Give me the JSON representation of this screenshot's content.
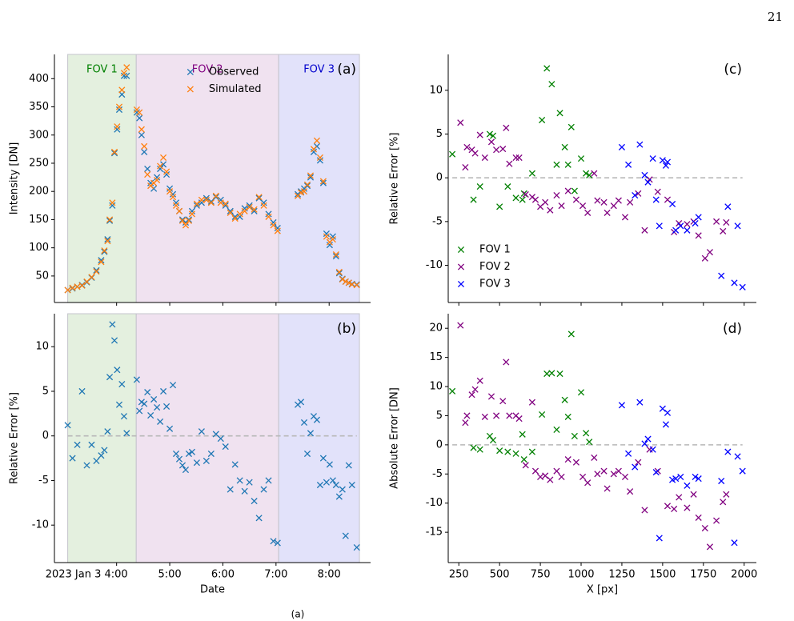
{
  "page_number": "21",
  "caption": "(a)",
  "chart_data": [
    {
      "type": "scatter",
      "panel_label": "(a)",
      "ylabel": "Intensity [DN]",
      "xlim": [
        2.83,
        8.78
      ],
      "xticks": [
        4,
        5,
        6,
        7,
        8
      ],
      "ylim": [
        3,
        443
      ],
      "yticks": [
        50,
        100,
        150,
        200,
        250,
        300,
        350,
        400
      ],
      "legend": "upper center",
      "regions": [
        {
          "label": "FOV 1",
          "color": "#008000",
          "fill": "#e4f0df",
          "start": 3.08,
          "end": 4.37
        },
        {
          "label": "FOV 2",
          "color": "#800080",
          "fill": "#f0e2f0",
          "start": 4.37,
          "end": 7.05
        },
        {
          "label": "FOV 3",
          "color": "#0000cc",
          "fill": "#e2e2fa",
          "start": 7.05,
          "end": 8.57
        }
      ],
      "x": [
        3.08,
        3.17,
        3.26,
        3.35,
        3.44,
        3.53,
        3.62,
        3.71,
        3.77,
        3.83,
        3.87,
        3.92,
        3.96,
        4.01,
        4.05,
        4.1,
        4.14,
        4.19,
        4.38,
        4.43,
        4.47,
        4.52,
        4.58,
        4.64,
        4.7,
        4.76,
        4.82,
        4.88,
        4.94,
        5.0,
        5.06,
        5.12,
        5.18,
        5.24,
        5.3,
        5.36,
        5.42,
        5.51,
        5.6,
        5.69,
        5.78,
        5.87,
        5.96,
        6.05,
        6.14,
        6.23,
        6.32,
        6.41,
        6.5,
        6.59,
        6.68,
        6.77,
        6.86,
        6.95,
        7.03,
        7.41,
        7.47,
        7.53,
        7.59,
        7.65,
        7.71,
        7.77,
        7.83,
        7.89,
        7.95,
        8.01,
        8.07,
        8.13,
        8.19,
        8.25,
        8.31,
        8.37,
        8.43,
        8.52
      ],
      "series": [
        {
          "name": "Observed",
          "color": "#1f77b4",
          "values": [
            25,
            28,
            31,
            34,
            39,
            47,
            60,
            78,
            93,
            115,
            148,
            175,
            268,
            310,
            345,
            372,
            405,
            405,
            340,
            330,
            300,
            270,
            240,
            215,
            205,
            225,
            240,
            248,
            230,
            205,
            195,
            180,
            165,
            150,
            145,
            150,
            165,
            175,
            180,
            188,
            182,
            190,
            185,
            175,
            165,
            155,
            155,
            170,
            175,
            165,
            188,
            180,
            160,
            145,
            135,
            195,
            200,
            205,
            210,
            225,
            270,
            280,
            255,
            215,
            125,
            105,
            120,
            85,
            55,
            45,
            40,
            38,
            36,
            35
          ]
        },
        {
          "name": "Simulated",
          "color": "#ff7f0e",
          "values": [
            25,
            29,
            31,
            33,
            40,
            48,
            58,
            75,
            95,
            112,
            150,
            180,
            270,
            315,
            350,
            380,
            410,
            420,
            345,
            340,
            310,
            280,
            230,
            210,
            215,
            220,
            245,
            260,
            235,
            200,
            190,
            175,
            165,
            148,
            140,
            148,
            160,
            178,
            185,
            185,
            180,
            192,
            180,
            178,
            162,
            152,
            160,
            165,
            172,
            168,
            190,
            175,
            155,
            140,
            130,
            192,
            198,
            200,
            212,
            228,
            275,
            290,
            260,
            218,
            120,
            110,
            115,
            88,
            57,
            44,
            40,
            38,
            35,
            34
          ]
        }
      ]
    },
    {
      "type": "scatter",
      "panel_label": "(b)",
      "ylabel": "Relative Error [%]",
      "xlabel": "Date",
      "xlim": [
        2.83,
        8.78
      ],
      "xticks": [
        {
          "value": 4,
          "label": "2023 Jan 3 4:00"
        },
        {
          "value": 5,
          "label": "5:00"
        },
        {
          "value": 6,
          "label": "6:00"
        },
        {
          "value": 7,
          "label": "7:00"
        },
        {
          "value": 8,
          "label": "8:00"
        }
      ],
      "ylim": [
        -14.2,
        13.7
      ],
      "yticks": [
        -10,
        -5,
        0,
        5,
        10
      ],
      "hline": 0,
      "regions": [
        {
          "color": "#008000",
          "fill": "#e4f0df",
          "start": 3.08,
          "end": 4.37
        },
        {
          "color": "#800080",
          "fill": "#f0e2f0",
          "start": 4.37,
          "end": 7.05
        },
        {
          "color": "#0000cc",
          "fill": "#e2e2fa",
          "start": 7.05,
          "end": 8.57
        }
      ],
      "x": [
        3.08,
        3.17,
        3.26,
        3.35,
        3.44,
        3.53,
        3.62,
        3.71,
        3.77,
        3.83,
        3.87,
        3.92,
        3.96,
        4.01,
        4.05,
        4.1,
        4.14,
        4.19,
        4.38,
        4.43,
        4.47,
        4.52,
        4.58,
        4.64,
        4.7,
        4.76,
        4.82,
        4.88,
        4.94,
        5.0,
        5.06,
        5.12,
        5.18,
        5.24,
        5.3,
        5.36,
        5.42,
        5.51,
        5.6,
        5.69,
        5.78,
        5.87,
        5.96,
        6.05,
        6.14,
        6.23,
        6.32,
        6.41,
        6.5,
        6.59,
        6.68,
        6.77,
        6.86,
        6.95,
        7.03,
        7.41,
        7.47,
        7.53,
        7.59,
        7.65,
        7.71,
        7.77,
        7.83,
        7.89,
        7.95,
        8.01,
        8.07,
        8.13,
        8.19,
        8.25,
        8.31,
        8.37,
        8.43,
        8.52
      ],
      "series": [
        {
          "color": "#1f77b4",
          "values": [
            1.2,
            -2.5,
            -1.0,
            5.0,
            -3.3,
            -1.0,
            -2.8,
            -2.2,
            -1.6,
            0.5,
            6.6,
            12.5,
            10.7,
            7.4,
            3.5,
            5.8,
            2.2,
            0.3,
            6.3,
            2.8,
            3.8,
            3.6,
            4.9,
            2.3,
            4.1,
            3.2,
            1.6,
            5.0,
            3.3,
            0.8,
            5.7,
            -2.0,
            -2.6,
            -3.3,
            -3.8,
            -2.0,
            -1.8,
            -3.0,
            0.5,
            -2.8,
            -2.0,
            0.2,
            -0.3,
            -1.2,
            -6.0,
            -3.2,
            -5.0,
            -6.2,
            -5.2,
            -7.3,
            -9.2,
            -6.0,
            -5.0,
            -11.8,
            -12.0,
            3.5,
            3.8,
            1.5,
            -2.0,
            0.3,
            2.2,
            1.8,
            -5.5,
            -2.5,
            -5.2,
            -3.2,
            -5.0,
            -5.5,
            -6.8,
            -6.0,
            -11.2,
            -3.3,
            -5.5,
            -12.5
          ]
        }
      ]
    },
    {
      "type": "scatter",
      "panel_label": "(c)",
      "ylabel": "Relative Error [%]",
      "xlim": [
        185,
        2075
      ],
      "xticks": [
        250,
        500,
        750,
        1000,
        1250,
        1500,
        1750,
        2000
      ],
      "ylim": [
        -14.25,
        14.1
      ],
      "yticks": [
        -10,
        -5,
        0,
        5,
        10
      ],
      "hline": 0,
      "legend": "lower left",
      "series": [
        {
          "name": "FOV 1",
          "color": "#008000",
          "x": [
            210,
            340,
            380,
            440,
            500,
            550,
            600,
            640,
            700,
            760,
            790,
            820,
            850,
            870,
            900,
            920,
            940,
            960,
            1000,
            1030,
            1050,
            460,
            650
          ],
          "values": [
            2.7,
            -2.5,
            -1,
            5,
            -3.3,
            -1,
            -2.3,
            -2.5,
            0.5,
            6.6,
            12.5,
            10.7,
            1.5,
            7.4,
            3.5,
            1.5,
            5.8,
            -1.5,
            2.2,
            0.5,
            0.3,
            4.8,
            -1.8
          ]
        },
        {
          "name": "FOV 2",
          "color": "#800080",
          "x": [
            260,
            290,
            300,
            330,
            350,
            380,
            410,
            450,
            480,
            520,
            540,
            560,
            600,
            620,
            660,
            700,
            720,
            750,
            780,
            810,
            850,
            880,
            920,
            970,
            1010,
            1040,
            1080,
            1100,
            1140,
            1160,
            1200,
            1230,
            1270,
            1300,
            1350,
            1390,
            1420,
            1470,
            1530,
            1570,
            1600,
            1650,
            1690,
            1720,
            1760,
            1790,
            1830,
            1870,
            1890
          ],
          "values": [
            6.3,
            1.2,
            3.5,
            3.2,
            2.8,
            4.9,
            2.3,
            4.1,
            3.2,
            3.3,
            5.7,
            1.6,
            2.3,
            2.3,
            -1.9,
            -2.2,
            -2.5,
            -3.3,
            -2.8,
            -3.7,
            -2.0,
            -3.2,
            -1.5,
            -2.5,
            -3.2,
            -4.0,
            0.5,
            -2.6,
            -2.8,
            -4.0,
            -3.2,
            -2.6,
            -4.5,
            -2.8,
            -1.8,
            -6.0,
            -0.2,
            -1.6,
            -2.5,
            -6.2,
            -5.2,
            -5.3,
            -5.0,
            -6.6,
            -9.2,
            -8.5,
            -5.0,
            -6.1,
            -5.1
          ]
        },
        {
          "name": "FOV 3",
          "color": "#0000ff",
          "x": [
            1250,
            1290,
            1330,
            1360,
            1390,
            1410,
            1440,
            1460,
            1480,
            1500,
            1520,
            1560,
            1580,
            1610,
            1650,
            1700,
            1720,
            1860,
            1900,
            1940,
            1960,
            1990,
            1530
          ],
          "values": [
            3.5,
            1.5,
            -2,
            3.8,
            0.3,
            -0.5,
            2.2,
            -2.5,
            -5.5,
            2,
            1.4,
            -3,
            -6,
            -5.5,
            -6,
            -5.2,
            -4.5,
            -11.2,
            -3.3,
            -12,
            -5.5,
            -12.5,
            1.8
          ]
        }
      ]
    },
    {
      "type": "scatter",
      "panel_label": "(d)",
      "ylabel": "Absolute Error [DN]",
      "xlabel": "X [px]",
      "xlim": [
        185,
        2075
      ],
      "xticks": [
        250,
        500,
        750,
        1000,
        1250,
        1500,
        1750,
        2000
      ],
      "ylim": [
        -20.2,
        22.5
      ],
      "yticks": [
        -15,
        -10,
        -5,
        0,
        5,
        10,
        15,
        20
      ],
      "hline": 0,
      "series": [
        {
          "color": "#008000",
          "x": [
            210,
            340,
            380,
            440,
            500,
            550,
            600,
            640,
            700,
            760,
            790,
            820,
            850,
            870,
            900,
            920,
            940,
            960,
            1000,
            1030,
            1050,
            460,
            650
          ],
          "values": [
            9.2,
            -0.5,
            -0.8,
            1.5,
            -1,
            -1.2,
            -1.5,
            1.8,
            -1.2,
            5.2,
            12.2,
            12.3,
            2.6,
            12.2,
            7.7,
            4.8,
            19,
            1.5,
            9,
            2,
            0.5,
            0.8,
            -2.5
          ]
        },
        {
          "color": "#800080",
          "x": [
            260,
            290,
            300,
            330,
            350,
            380,
            410,
            450,
            480,
            520,
            540,
            560,
            600,
            620,
            660,
            700,
            720,
            750,
            780,
            810,
            850,
            880,
            920,
            970,
            1010,
            1040,
            1080,
            1100,
            1140,
            1160,
            1200,
            1230,
            1270,
            1300,
            1350,
            1390,
            1420,
            1470,
            1530,
            1570,
            1600,
            1650,
            1690,
            1720,
            1760,
            1790,
            1830,
            1870,
            1890
          ],
          "values": [
            20.5,
            3.8,
            5,
            8.6,
            9.5,
            11,
            4.8,
            8.3,
            5,
            7.5,
            14.2,
            5,
            5,
            4.5,
            -3.5,
            7.3,
            -4.5,
            -5.5,
            -5.3,
            -6,
            -4.5,
            -5.5,
            -2.5,
            -3,
            -5.5,
            -6.5,
            -2.2,
            -5,
            -4.5,
            -7.5,
            -5,
            -4.5,
            -5.5,
            -8,
            -3,
            -11.2,
            -0.8,
            -4.5,
            -10.5,
            -11,
            -9,
            -10.8,
            -8.5,
            -12.5,
            -14.3,
            -17.5,
            -13,
            -9.8,
            -8.5
          ]
        },
        {
          "color": "#0000ff",
          "x": [
            1250,
            1290,
            1330,
            1360,
            1390,
            1410,
            1440,
            1460,
            1480,
            1500,
            1520,
            1560,
            1580,
            1610,
            1650,
            1700,
            1720,
            1860,
            1900,
            1940,
            1960,
            1990,
            1530
          ],
          "values": [
            6.8,
            -1.5,
            -3.8,
            7.3,
            0.2,
            1,
            -0.8,
            -4.7,
            -16,
            6.2,
            3.5,
            -6,
            -5.8,
            -5.5,
            -7,
            -5.5,
            -5.8,
            -6.2,
            -1.2,
            -16.8,
            -2,
            -4.5,
            5.5
          ]
        }
      ]
    }
  ]
}
